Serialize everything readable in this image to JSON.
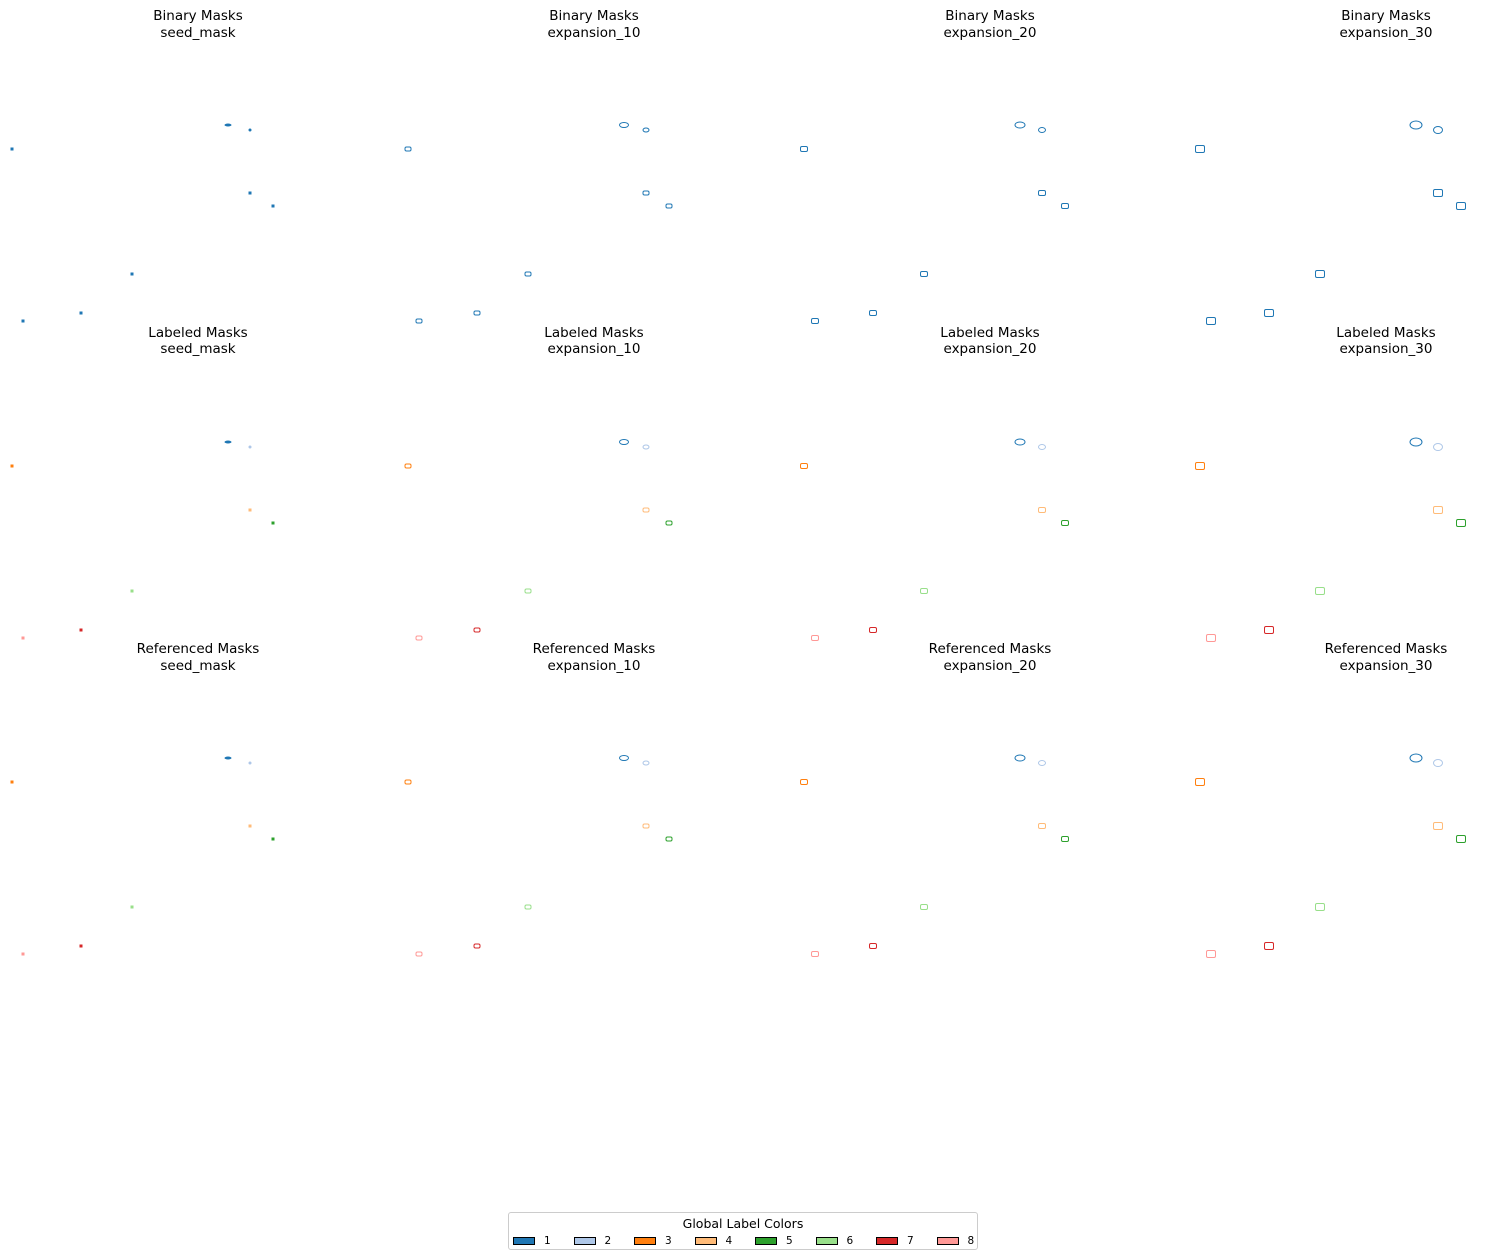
{
  "colors": {
    "1": "#1f77b4",
    "2": "#aec7e8",
    "3": "#ff7f0e",
    "4": "#ffbb78",
    "5": "#2ca02c",
    "6": "#98df8a",
    "7": "#d62728",
    "8": "#ff9896"
  },
  "row_titles": [
    "Binary Masks",
    "Labeled Masks",
    "Referenced Masks"
  ],
  "column_titles": [
    "seed_mask",
    "expansion_10",
    "expansion_20",
    "expansion_30"
  ],
  "panels": [
    {
      "line1": "Binary Masks",
      "line2": "seed_mask"
    },
    {
      "line1": "Binary Masks",
      "line2": "expansion_10"
    },
    {
      "line1": "Binary Masks",
      "line2": "expansion_20"
    },
    {
      "line1": "Binary Masks",
      "line2": "expansion_30"
    },
    {
      "line1": "Labeled Masks",
      "line2": "seed_mask"
    },
    {
      "line1": "Labeled Masks",
      "line2": "expansion_10"
    },
    {
      "line1": "Labeled Masks",
      "line2": "expansion_20"
    },
    {
      "line1": "Labeled Masks",
      "line2": "expansion_30"
    },
    {
      "line1": "Referenced Masks",
      "line2": "seed_mask"
    },
    {
      "line1": "Referenced Masks",
      "line2": "expansion_10"
    },
    {
      "line1": "Referenced Masks",
      "line2": "expansion_20"
    },
    {
      "line1": "Referenced Masks",
      "line2": "expansion_30"
    }
  ],
  "objects": [
    {
      "label": 1,
      "shape": "ellipse"
    },
    {
      "label": 2,
      "shape": "ellipse"
    },
    {
      "label": 3,
      "shape": "rect"
    },
    {
      "label": 4,
      "shape": "rect"
    },
    {
      "label": 5,
      "shape": "rect"
    },
    {
      "label": 6,
      "shape": "rect"
    },
    {
      "label": 7,
      "shape": "rect"
    },
    {
      "label": 8,
      "shape": "rect"
    }
  ],
  "legend": {
    "title": "Global Label Colors",
    "items": [
      {
        "label": "1",
        "color": "#1f77b4"
      },
      {
        "label": "2",
        "color": "#aec7e8"
      },
      {
        "label": "3",
        "color": "#ff7f0e"
      },
      {
        "label": "4",
        "color": "#ffbb78"
      },
      {
        "label": "5",
        "color": "#2ca02c"
      },
      {
        "label": "6",
        "color": "#98df8a"
      },
      {
        "label": "7",
        "color": "#d62728"
      },
      {
        "label": "8",
        "color": "#ff9896"
      }
    ]
  }
}
